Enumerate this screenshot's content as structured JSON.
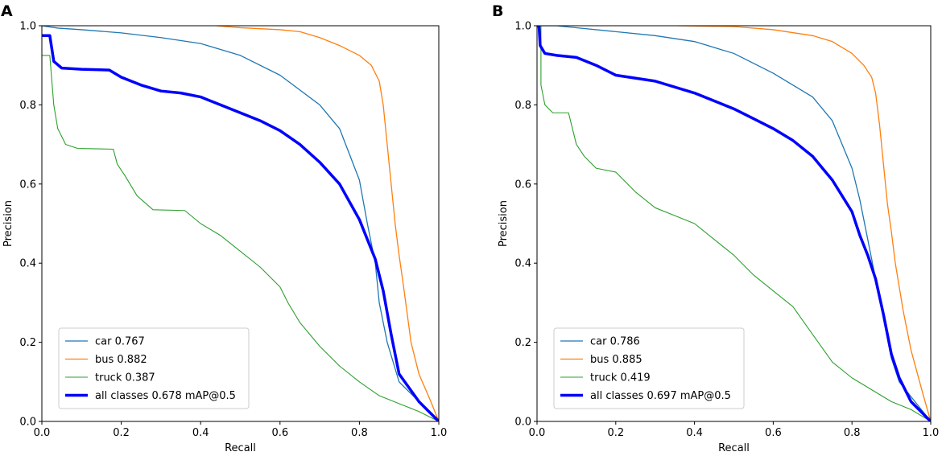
{
  "chart_data": [
    {
      "type": "line",
      "panel": "A",
      "xlabel": "Recall",
      "ylabel": "Precision",
      "xlim": [
        0,
        1
      ],
      "ylim": [
        0,
        1
      ],
      "xticks": [
        "0.0",
        "0.2",
        "0.4",
        "0.6",
        "0.8",
        "1.0"
      ],
      "yticks": [
        "0.0",
        "0.2",
        "0.4",
        "0.6",
        "0.8",
        "1.0"
      ],
      "legend_position": "lower-left",
      "series": [
        {
          "name": "car 0.767",
          "color": "#1f77b4",
          "width": 1.3,
          "points": [
            [
              0,
              1.0
            ],
            [
              0.04,
              0.994
            ],
            [
              0.1,
              0.99
            ],
            [
              0.2,
              0.982
            ],
            [
              0.3,
              0.97
            ],
            [
              0.4,
              0.955
            ],
            [
              0.5,
              0.925
            ],
            [
              0.6,
              0.875
            ],
            [
              0.7,
              0.8
            ],
            [
              0.75,
              0.74
            ],
            [
              0.8,
              0.61
            ],
            [
              0.82,
              0.5
            ],
            [
              0.84,
              0.4
            ],
            [
              0.85,
              0.3
            ],
            [
              0.87,
              0.2
            ],
            [
              0.9,
              0.1
            ],
            [
              0.95,
              0.05
            ],
            [
              1.0,
              0.0
            ]
          ]
        },
        {
          "name": "bus 0.882",
          "color": "#ff7f0e",
          "width": 1.3,
          "points": [
            [
              0.44,
              1.0
            ],
            [
              0.5,
              0.995
            ],
            [
              0.6,
              0.99
            ],
            [
              0.65,
              0.985
            ],
            [
              0.7,
              0.97
            ],
            [
              0.75,
              0.95
            ],
            [
              0.8,
              0.925
            ],
            [
              0.83,
              0.9
            ],
            [
              0.85,
              0.86
            ],
            [
              0.86,
              0.8
            ],
            [
              0.87,
              0.7
            ],
            [
              0.88,
              0.6
            ],
            [
              0.89,
              0.5
            ],
            [
              0.9,
              0.42
            ],
            [
              0.91,
              0.35
            ],
            [
              0.93,
              0.2
            ],
            [
              0.95,
              0.12
            ],
            [
              0.98,
              0.05
            ],
            [
              1.0,
              0.0
            ]
          ]
        },
        {
          "name": "truck 0.387",
          "color": "#2ca02c",
          "width": 1.1,
          "points": [
            [
              0,
              0.925
            ],
            [
              0.02,
              0.925
            ],
            [
              0.03,
              0.8
            ],
            [
              0.04,
              0.74
            ],
            [
              0.06,
              0.7
            ],
            [
              0.09,
              0.69
            ],
            [
              0.18,
              0.688
            ],
            [
              0.19,
              0.65
            ],
            [
              0.21,
              0.62
            ],
            [
              0.24,
              0.57
            ],
            [
              0.28,
              0.535
            ],
            [
              0.36,
              0.533
            ],
            [
              0.4,
              0.5
            ],
            [
              0.45,
              0.47
            ],
            [
              0.5,
              0.43
            ],
            [
              0.55,
              0.39
            ],
            [
              0.6,
              0.34
            ],
            [
              0.62,
              0.3
            ],
            [
              0.65,
              0.25
            ],
            [
              0.7,
              0.19
            ],
            [
              0.75,
              0.14
            ],
            [
              0.8,
              0.1
            ],
            [
              0.85,
              0.065
            ],
            [
              0.9,
              0.045
            ],
            [
              0.95,
              0.025
            ],
            [
              1.0,
              0.0
            ]
          ]
        },
        {
          "name": "all classes 0.678 mAP@0.5",
          "color": "#0000ff",
          "width": 3.5,
          "points": [
            [
              0,
              0.975
            ],
            [
              0.02,
              0.975
            ],
            [
              0.03,
              0.91
            ],
            [
              0.05,
              0.893
            ],
            [
              0.1,
              0.89
            ],
            [
              0.17,
              0.888
            ],
            [
              0.2,
              0.87
            ],
            [
              0.25,
              0.85
            ],
            [
              0.3,
              0.835
            ],
            [
              0.35,
              0.83
            ],
            [
              0.4,
              0.82
            ],
            [
              0.45,
              0.8
            ],
            [
              0.5,
              0.78
            ],
            [
              0.55,
              0.76
            ],
            [
              0.6,
              0.735
            ],
            [
              0.65,
              0.7
            ],
            [
              0.7,
              0.655
            ],
            [
              0.75,
              0.6
            ],
            [
              0.8,
              0.51
            ],
            [
              0.82,
              0.46
            ],
            [
              0.84,
              0.41
            ],
            [
              0.86,
              0.33
            ],
            [
              0.88,
              0.22
            ],
            [
              0.9,
              0.12
            ],
            [
              0.95,
              0.05
            ],
            [
              1.0,
              0.0
            ]
          ]
        }
      ]
    },
    {
      "type": "line",
      "panel": "B",
      "xlabel": "Recall",
      "ylabel": "Precision",
      "xlim": [
        0,
        1
      ],
      "ylim": [
        0,
        1
      ],
      "xticks": [
        "0.0",
        "0.2",
        "0.4",
        "0.6",
        "0.8",
        "1.0"
      ],
      "yticks": [
        "0.0",
        "0.2",
        "0.4",
        "0.6",
        "0.8",
        "1.0"
      ],
      "legend_position": "lower-left",
      "series": [
        {
          "name": "car 0.786",
          "color": "#1f77b4",
          "width": 1.3,
          "points": [
            [
              0,
              1.0
            ],
            [
              0.05,
              1.0
            ],
            [
              0.1,
              0.995
            ],
            [
              0.2,
              0.985
            ],
            [
              0.3,
              0.975
            ],
            [
              0.4,
              0.96
            ],
            [
              0.5,
              0.93
            ],
            [
              0.6,
              0.88
            ],
            [
              0.7,
              0.82
            ],
            [
              0.75,
              0.76
            ],
            [
              0.8,
              0.64
            ],
            [
              0.82,
              0.56
            ],
            [
              0.84,
              0.46
            ],
            [
              0.86,
              0.36
            ],
            [
              0.88,
              0.26
            ],
            [
              0.9,
              0.16
            ],
            [
              0.92,
              0.1
            ],
            [
              0.96,
              0.05
            ],
            [
              1.0,
              0.0
            ]
          ]
        },
        {
          "name": "bus 0.885",
          "color": "#ff7f0e",
          "width": 1.3,
          "points": [
            [
              0.36,
              1.0
            ],
            [
              0.5,
              0.998
            ],
            [
              0.6,
              0.99
            ],
            [
              0.7,
              0.975
            ],
            [
              0.75,
              0.96
            ],
            [
              0.8,
              0.93
            ],
            [
              0.83,
              0.9
            ],
            [
              0.85,
              0.87
            ],
            [
              0.86,
              0.83
            ],
            [
              0.87,
              0.75
            ],
            [
              0.88,
              0.65
            ],
            [
              0.89,
              0.55
            ],
            [
              0.9,
              0.48
            ],
            [
              0.91,
              0.4
            ],
            [
              0.93,
              0.28
            ],
            [
              0.95,
              0.18
            ],
            [
              0.98,
              0.07
            ],
            [
              1.0,
              0.0
            ]
          ]
        },
        {
          "name": "truck 0.419",
          "color": "#2ca02c",
          "width": 1.1,
          "points": [
            [
              0.01,
              1.0
            ],
            [
              0.01,
              0.85
            ],
            [
              0.02,
              0.8
            ],
            [
              0.04,
              0.78
            ],
            [
              0.08,
              0.78
            ],
            [
              0.1,
              0.7
            ],
            [
              0.12,
              0.67
            ],
            [
              0.15,
              0.64
            ],
            [
              0.2,
              0.63
            ],
            [
              0.25,
              0.58
            ],
            [
              0.3,
              0.54
            ],
            [
              0.35,
              0.52
            ],
            [
              0.4,
              0.5
            ],
            [
              0.45,
              0.46
            ],
            [
              0.5,
              0.42
            ],
            [
              0.55,
              0.37
            ],
            [
              0.6,
              0.33
            ],
            [
              0.65,
              0.29
            ],
            [
              0.7,
              0.22
            ],
            [
              0.75,
              0.15
            ],
            [
              0.8,
              0.11
            ],
            [
              0.85,
              0.08
            ],
            [
              0.9,
              0.05
            ],
            [
              0.95,
              0.03
            ],
            [
              1.0,
              0.0
            ]
          ]
        },
        {
          "name": "all classes 0.697 mAP@0.5",
          "color": "#0000ff",
          "width": 3.5,
          "points": [
            [
              0,
              1.0
            ],
            [
              0.005,
              1.0
            ],
            [
              0.008,
              0.95
            ],
            [
              0.02,
              0.93
            ],
            [
              0.05,
              0.925
            ],
            [
              0.1,
              0.92
            ],
            [
              0.15,
              0.9
            ],
            [
              0.2,
              0.875
            ],
            [
              0.3,
              0.86
            ],
            [
              0.4,
              0.83
            ],
            [
              0.5,
              0.79
            ],
            [
              0.55,
              0.765
            ],
            [
              0.6,
              0.74
            ],
            [
              0.65,
              0.71
            ],
            [
              0.7,
              0.67
            ],
            [
              0.75,
              0.61
            ],
            [
              0.8,
              0.53
            ],
            [
              0.82,
              0.47
            ],
            [
              0.84,
              0.42
            ],
            [
              0.86,
              0.36
            ],
            [
              0.88,
              0.27
            ],
            [
              0.9,
              0.17
            ],
            [
              0.92,
              0.11
            ],
            [
              0.95,
              0.05
            ],
            [
              1.0,
              0.0
            ]
          ]
        }
      ]
    }
  ]
}
